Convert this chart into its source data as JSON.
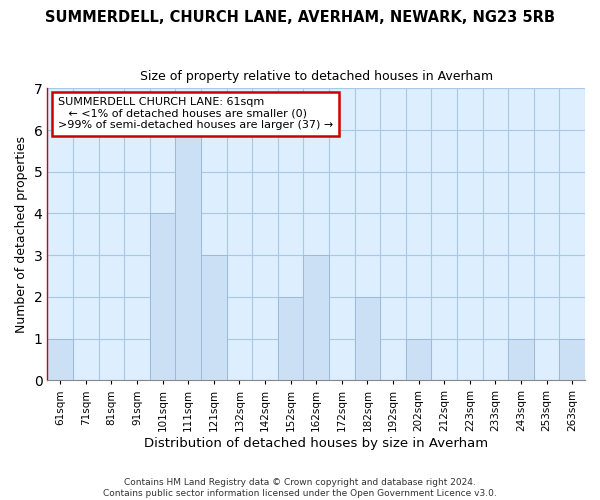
{
  "title": "SUMMERDELL, CHURCH LANE, AVERHAM, NEWARK, NG23 5RB",
  "subtitle": "Size of property relative to detached houses in Averham",
  "xlabel": "Distribution of detached houses by size in Averham",
  "ylabel": "Number of detached properties",
  "footer_line1": "Contains HM Land Registry data © Crown copyright and database right 2024.",
  "footer_line2": "Contains public sector information licensed under the Open Government Licence v3.0.",
  "categories": [
    "61sqm",
    "71sqm",
    "81sqm",
    "91sqm",
    "101sqm",
    "111sqm",
    "121sqm",
    "132sqm",
    "142sqm",
    "152sqm",
    "162sqm",
    "172sqm",
    "182sqm",
    "192sqm",
    "202sqm",
    "212sqm",
    "223sqm",
    "233sqm",
    "243sqm",
    "253sqm",
    "263sqm"
  ],
  "values": [
    1,
    0,
    0,
    0,
    4,
    6,
    3,
    0,
    0,
    2,
    3,
    0,
    2,
    0,
    1,
    0,
    0,
    0,
    1,
    0,
    1
  ],
  "bar_color": "#cce0f5",
  "bar_edgecolor": "#9bbbd8",
  "background_color": "#ddeeff",
  "ylim": [
    0,
    7
  ],
  "yticks": [
    0,
    1,
    2,
    3,
    4,
    5,
    6,
    7
  ],
  "annotation_title": "SUMMERDELL CHURCH LANE: 61sqm",
  "annotation_line1": "← <1% of detached houses are smaller (0)",
  "annotation_line2": ">99% of semi-detached houses are larger (37) →",
  "annotation_box_edgecolor": "#cc0000",
  "annotation_box_facecolor": "#ffffff"
}
